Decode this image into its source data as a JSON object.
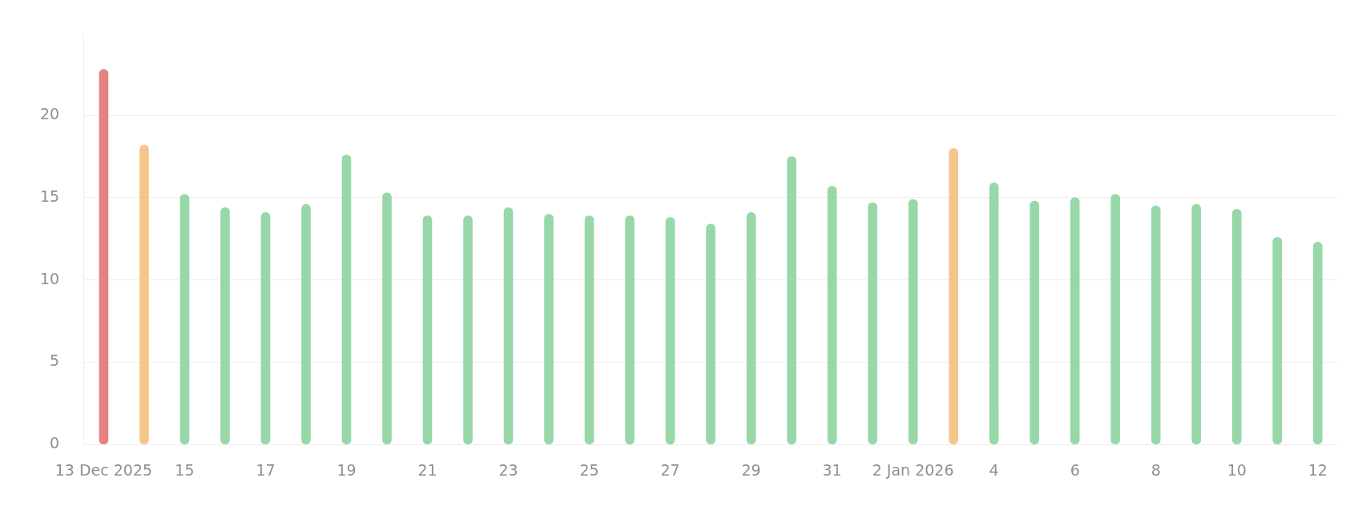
{
  "chart_data": {
    "type": "bar",
    "categories": [
      "13 Dec 2025",
      null,
      "15",
      null,
      "17",
      null,
      "19",
      null,
      "21",
      null,
      "23",
      null,
      "25",
      null,
      "27",
      null,
      "29",
      null,
      "31",
      null,
      "2 Jan 2026",
      null,
      "4",
      null,
      "6",
      null,
      "8",
      null,
      "10",
      null,
      "12"
    ],
    "values": [
      22.8,
      18.2,
      15.2,
      14.4,
      14.1,
      14.6,
      17.6,
      15.3,
      13.9,
      13.9,
      14.4,
      14.0,
      13.9,
      13.9,
      13.8,
      13.4,
      14.1,
      17.5,
      15.7,
      14.7,
      14.9,
      18.0,
      15.9,
      14.8,
      15.0,
      15.2,
      14.5,
      14.6,
      14.3,
      12.6,
      12.3
    ],
    "colors": [
      "#e3837f",
      "#f5c68a",
      "#98d8a8",
      "#98d8a8",
      "#98d8a8",
      "#98d8a8",
      "#98d8a8",
      "#98d8a8",
      "#98d8a8",
      "#98d8a8",
      "#98d8a8",
      "#98d8a8",
      "#98d8a8",
      "#98d8a8",
      "#98d8a8",
      "#98d8a8",
      "#98d8a8",
      "#98d8a8",
      "#98d8a8",
      "#98d8a8",
      "#98d8a8",
      "#f5c68a",
      "#98d8a8",
      "#98d8a8",
      "#98d8a8",
      "#98d8a8",
      "#98d8a8",
      "#98d8a8",
      "#98d8a8",
      "#98d8a8",
      "#98d8a8"
    ],
    "ylim": [
      0,
      25
    ],
    "yticks": [
      0,
      5,
      10,
      15,
      20
    ],
    "grid": "y",
    "legend": false
  }
}
